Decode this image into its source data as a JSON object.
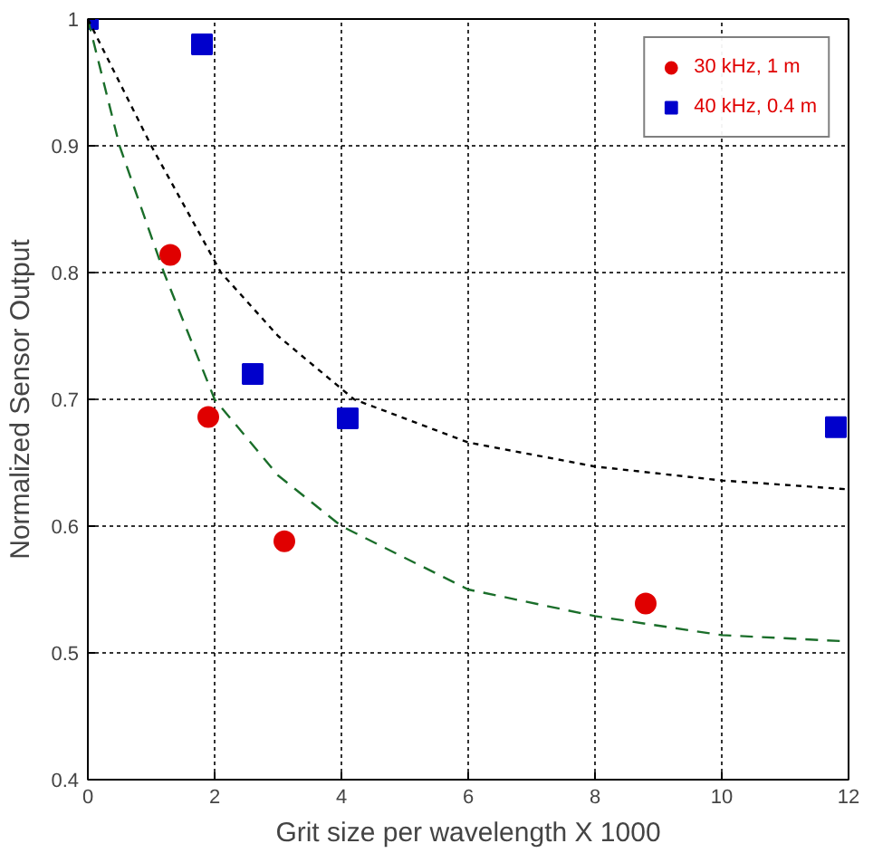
{
  "chart_data": {
    "type": "scatter",
    "xlabel": "Grit size per wavelength X 1000",
    "ylabel": "Normalized Sensor Output",
    "xlim": [
      0,
      12
    ],
    "ylim": [
      0.4,
      1
    ],
    "xticks": [
      0,
      2,
      4,
      6,
      8,
      10,
      12
    ],
    "yticks": [
      0.4,
      0.5,
      0.6,
      0.7,
      0.8,
      0.9,
      1
    ],
    "grid": true,
    "legend": "top right",
    "series": [
      {
        "name": "30 kHz, 1 m",
        "color": "#e00000",
        "marker": "circle",
        "x": [
          1.3,
          1.9,
          3.1,
          8.8
        ],
        "values": [
          0.814,
          0.686,
          0.588,
          0.539
        ]
      },
      {
        "name": "40 kHz, 0.4 m",
        "color": "#0000cc",
        "marker": "square",
        "x": [
          0,
          1.8,
          2.6,
          4.1,
          11.8
        ],
        "values": [
          1.0,
          0.98,
          0.72,
          0.685,
          0.678
        ]
      },
      {
        "type": "line",
        "color": "#1a6e2a",
        "line_style": "dashed",
        "x": [
          0,
          0.5,
          1.2,
          2,
          3,
          4,
          6,
          8,
          10,
          12
        ],
        "values": [
          1.0,
          0.9,
          0.8,
          0.7,
          0.64,
          0.6,
          0.55,
          0.529,
          0.514,
          0.509
        ]
      },
      {
        "type": "line",
        "color": "#000000",
        "line_style": "dotted",
        "x": [
          0,
          1,
          2.1,
          3,
          4.2,
          6,
          8,
          10,
          12
        ],
        "values": [
          1.0,
          0.9,
          0.8,
          0.75,
          0.7,
          0.666,
          0.647,
          0.636,
          0.629
        ]
      }
    ]
  }
}
